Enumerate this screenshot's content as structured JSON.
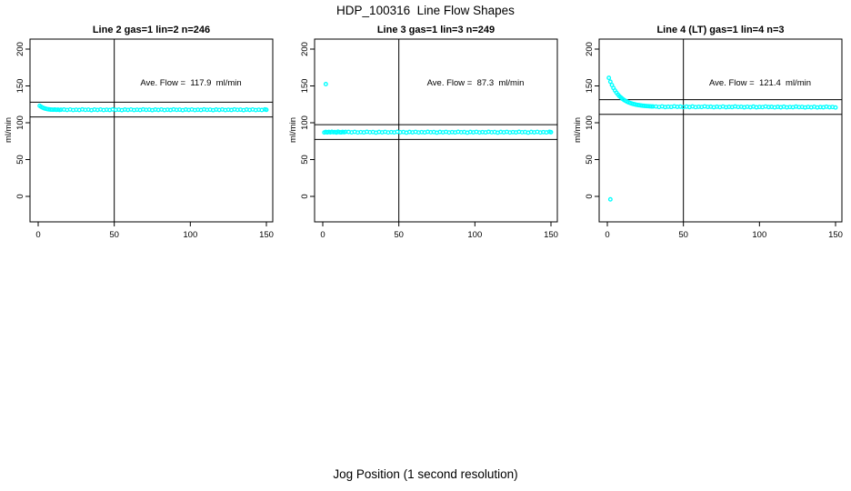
{
  "figure": {
    "title": "HDP_100316  Line Flow Shapes",
    "xlabel": "Jog Position (1 second resolution)"
  },
  "chart_data": {
    "type": "scatter",
    "layout": "1 row x 3 panels",
    "marker": {
      "shape": "open-circle",
      "color": "#00FFFF"
    },
    "axes": {
      "xlim": [
        -6,
        155
      ],
      "ylim": [
        -36,
        214
      ],
      "xticks": [
        0,
        50,
        100,
        150
      ],
      "yticks": [
        0,
        50,
        100,
        150,
        200
      ],
      "ylabel": "ml/min",
      "grid": false,
      "box": true
    },
    "panels": [
      {
        "title": "Line 2 gas=1 lin=2 n=246",
        "annotation": "Ave. Flow =  117.9  ml/min",
        "ave_flow_ml_min": 117.9,
        "n": 246,
        "ylabel": "ml/min",
        "reference_lines": {
          "vertical_x": 50,
          "horizontal_y": [
            127.9,
            107.9
          ]
        },
        "points": [
          [
            1,
            123.0
          ],
          [
            2,
            121.6
          ],
          [
            3,
            120.5
          ],
          [
            4,
            119.6
          ],
          [
            5,
            119.0
          ],
          [
            6,
            118.5
          ],
          [
            7,
            118.2
          ],
          [
            8,
            117.9
          ],
          [
            9,
            117.8
          ],
          [
            10,
            117.7
          ],
          [
            11,
            117.9
          ],
          [
            12,
            117.5
          ],
          [
            13,
            117.8
          ],
          [
            14,
            117.4
          ],
          [
            15,
            117.7
          ],
          [
            17,
            117.9
          ],
          [
            19,
            117.4
          ],
          [
            21,
            118.0
          ],
          [
            23,
            117.2
          ],
          [
            25,
            117.7
          ],
          [
            27,
            117.3
          ],
          [
            29,
            118.1
          ],
          [
            31,
            117.5
          ],
          [
            33,
            117.8
          ],
          [
            35,
            117.1
          ],
          [
            37,
            117.9
          ],
          [
            39,
            117.4
          ],
          [
            41,
            118.0
          ],
          [
            43,
            117.2
          ],
          [
            45,
            117.7
          ],
          [
            47,
            117.3
          ],
          [
            49,
            118.1
          ],
          [
            51,
            117.5
          ],
          [
            53,
            117.8
          ],
          [
            55,
            117.1
          ],
          [
            57,
            117.9
          ],
          [
            59,
            117.4
          ],
          [
            61,
            118.0
          ],
          [
            63,
            117.2
          ],
          [
            65,
            117.7
          ],
          [
            67,
            117.3
          ],
          [
            69,
            118.1
          ],
          [
            71,
            117.5
          ],
          [
            73,
            117.8
          ],
          [
            75,
            117.1
          ],
          [
            77,
            117.9
          ],
          [
            79,
            117.4
          ],
          [
            81,
            118.0
          ],
          [
            83,
            117.2
          ],
          [
            85,
            117.7
          ],
          [
            87,
            117.3
          ],
          [
            89,
            118.1
          ],
          [
            91,
            117.5
          ],
          [
            93,
            117.8
          ],
          [
            95,
            117.1
          ],
          [
            97,
            117.9
          ],
          [
            99,
            117.4
          ],
          [
            101,
            118.0
          ],
          [
            103,
            117.2
          ],
          [
            105,
            117.7
          ],
          [
            107,
            117.3
          ],
          [
            109,
            118.1
          ],
          [
            111,
            117.5
          ],
          [
            113,
            117.8
          ],
          [
            115,
            117.1
          ],
          [
            117,
            117.9
          ],
          [
            119,
            117.4
          ],
          [
            121,
            118.0
          ],
          [
            123,
            117.2
          ],
          [
            125,
            117.7
          ],
          [
            127,
            117.3
          ],
          [
            129,
            118.1
          ],
          [
            131,
            117.5
          ],
          [
            133,
            117.8
          ],
          [
            135,
            117.1
          ],
          [
            137,
            117.9
          ],
          [
            139,
            117.4
          ],
          [
            141,
            118.0
          ],
          [
            143,
            117.2
          ],
          [
            145,
            117.7
          ],
          [
            147,
            117.3
          ],
          [
            149,
            118.1
          ],
          [
            150,
            117.6
          ]
        ]
      },
      {
        "title": "Line 3 gas=1 lin=3 n=249",
        "annotation": "Ave. Flow =  87.3  ml/min",
        "ave_flow_ml_min": 87.3,
        "n": 249,
        "ylabel": "ml/min",
        "reference_lines": {
          "vertical_x": 50,
          "horizontal_y": [
            97.3,
            77.3
          ]
        },
        "points": [
          [
            2,
            152.5
          ],
          [
            1,
            86.8
          ],
          [
            2,
            87.5
          ],
          [
            3,
            86.9
          ],
          [
            4,
            87.6
          ],
          [
            5,
            87.0
          ],
          [
            6,
            87.7
          ],
          [
            7,
            87.1
          ],
          [
            8,
            87.4
          ],
          [
            9,
            86.7
          ],
          [
            10,
            87.8
          ],
          [
            11,
            87.2
          ],
          [
            12,
            86.9
          ],
          [
            13,
            87.5
          ],
          [
            14,
            87.1
          ],
          [
            15,
            87.6
          ],
          [
            17,
            87.5
          ],
          [
            19,
            87.0
          ],
          [
            21,
            87.6
          ],
          [
            23,
            86.8
          ],
          [
            25,
            87.3
          ],
          [
            27,
            86.9
          ],
          [
            29,
            87.7
          ],
          [
            31,
            87.1
          ],
          [
            33,
            87.4
          ],
          [
            35,
            86.6
          ],
          [
            37,
            87.5
          ],
          [
            39,
            87.0
          ],
          [
            41,
            87.6
          ],
          [
            43,
            86.8
          ],
          [
            45,
            87.3
          ],
          [
            47,
            86.9
          ],
          [
            49,
            87.7
          ],
          [
            51,
            87.1
          ],
          [
            53,
            87.4
          ],
          [
            55,
            86.6
          ],
          [
            57,
            87.5
          ],
          [
            59,
            87.0
          ],
          [
            61,
            87.6
          ],
          [
            63,
            86.8
          ],
          [
            65,
            87.3
          ],
          [
            67,
            86.9
          ],
          [
            69,
            87.7
          ],
          [
            71,
            87.1
          ],
          [
            73,
            87.4
          ],
          [
            75,
            86.6
          ],
          [
            77,
            87.5
          ],
          [
            79,
            87.0
          ],
          [
            81,
            87.6
          ],
          [
            83,
            86.8
          ],
          [
            85,
            87.3
          ],
          [
            87,
            86.9
          ],
          [
            89,
            87.7
          ],
          [
            91,
            87.1
          ],
          [
            93,
            87.4
          ],
          [
            95,
            86.6
          ],
          [
            97,
            87.5
          ],
          [
            99,
            87.0
          ],
          [
            101,
            87.6
          ],
          [
            103,
            86.8
          ],
          [
            105,
            87.3
          ],
          [
            107,
            86.9
          ],
          [
            109,
            87.7
          ],
          [
            111,
            87.1
          ],
          [
            113,
            87.4
          ],
          [
            115,
            86.6
          ],
          [
            117,
            87.5
          ],
          [
            119,
            87.0
          ],
          [
            121,
            87.6
          ],
          [
            123,
            86.8
          ],
          [
            125,
            87.3
          ],
          [
            127,
            86.9
          ],
          [
            129,
            87.7
          ],
          [
            131,
            87.1
          ],
          [
            133,
            87.4
          ],
          [
            135,
            86.6
          ],
          [
            137,
            87.5
          ],
          [
            139,
            87.0
          ],
          [
            141,
            87.6
          ],
          [
            143,
            86.8
          ],
          [
            145,
            87.3
          ],
          [
            147,
            86.9
          ],
          [
            149,
            87.7
          ],
          [
            150,
            87.2
          ]
        ]
      },
      {
        "title": "Line 4 (LT) gas=1 lin=4 n=3",
        "annotation": "Ave. Flow =  121.4  ml/min",
        "ave_flow_ml_min": 121.4,
        "n": 3,
        "ylabel": "ml/min",
        "reference_lines": {
          "vertical_x": 50,
          "horizontal_y": [
            131.4,
            111.4
          ]
        },
        "points": [
          [
            2,
            -4.0
          ],
          [
            1,
            161.0
          ],
          [
            2,
            155.7
          ],
          [
            3,
            151.2
          ],
          [
            4,
            147.2
          ],
          [
            5,
            143.8
          ],
          [
            6,
            140.8
          ],
          [
            7,
            138.2
          ],
          [
            8,
            136.0
          ],
          [
            9,
            134.1
          ],
          [
            10,
            132.4
          ],
          [
            11,
            130.9
          ],
          [
            12,
            129.7
          ],
          [
            13,
            128.6
          ],
          [
            14,
            127.6
          ],
          [
            15,
            126.8
          ],
          [
            16,
            126.1
          ],
          [
            17,
            125.5
          ],
          [
            18,
            125.0
          ],
          [
            19,
            124.5
          ],
          [
            20,
            124.1
          ],
          [
            21,
            123.8
          ],
          [
            22,
            123.5
          ],
          [
            23,
            123.2
          ],
          [
            24,
            123.0
          ],
          [
            25,
            122.8
          ],
          [
            26,
            122.6
          ],
          [
            27,
            122.5
          ],
          [
            28,
            122.3
          ],
          [
            29,
            122.2
          ],
          [
            30,
            122.1
          ],
          [
            32,
            122.0
          ],
          [
            34,
            121.4
          ],
          [
            36,
            122.2
          ],
          [
            38,
            121.3
          ],
          [
            40,
            121.8
          ],
          [
            42,
            121.5
          ],
          [
            44,
            122.3
          ],
          [
            46,
            121.6
          ],
          [
            48,
            121.9
          ],
          [
            50,
            121.2
          ],
          [
            52,
            121.9
          ],
          [
            54,
            121.3
          ],
          [
            56,
            122.1
          ],
          [
            58,
            121.2
          ],
          [
            60,
            121.7
          ],
          [
            62,
            121.4
          ],
          [
            64,
            122.2
          ],
          [
            66,
            121.5
          ],
          [
            68,
            121.8
          ],
          [
            70,
            121.1
          ],
          [
            72,
            121.8
          ],
          [
            74,
            121.2
          ],
          [
            76,
            122.0
          ],
          [
            78,
            121.1
          ],
          [
            80,
            121.6
          ],
          [
            82,
            121.3
          ],
          [
            84,
            122.1
          ],
          [
            86,
            121.4
          ],
          [
            88,
            121.7
          ],
          [
            90,
            121.0
          ],
          [
            92,
            121.7
          ],
          [
            94,
            121.1
          ],
          [
            96,
            121.9
          ],
          [
            98,
            121.0
          ],
          [
            100,
            121.5
          ],
          [
            102,
            121.2
          ],
          [
            104,
            122.0
          ],
          [
            106,
            121.3
          ],
          [
            108,
            121.6
          ],
          [
            110,
            120.9
          ],
          [
            112,
            121.6
          ],
          [
            114,
            121.0
          ],
          [
            116,
            121.8
          ],
          [
            118,
            120.9
          ],
          [
            120,
            121.4
          ],
          [
            122,
            121.1
          ],
          [
            124,
            121.9
          ],
          [
            126,
            121.2
          ],
          [
            128,
            121.5
          ],
          [
            130,
            120.8
          ],
          [
            132,
            121.5
          ],
          [
            134,
            120.9
          ],
          [
            136,
            121.7
          ],
          [
            138,
            120.8
          ],
          [
            140,
            121.3
          ],
          [
            142,
            121.0
          ],
          [
            144,
            121.8
          ],
          [
            146,
            121.1
          ],
          [
            148,
            121.4
          ],
          [
            150,
            120.7
          ]
        ]
      }
    ]
  }
}
